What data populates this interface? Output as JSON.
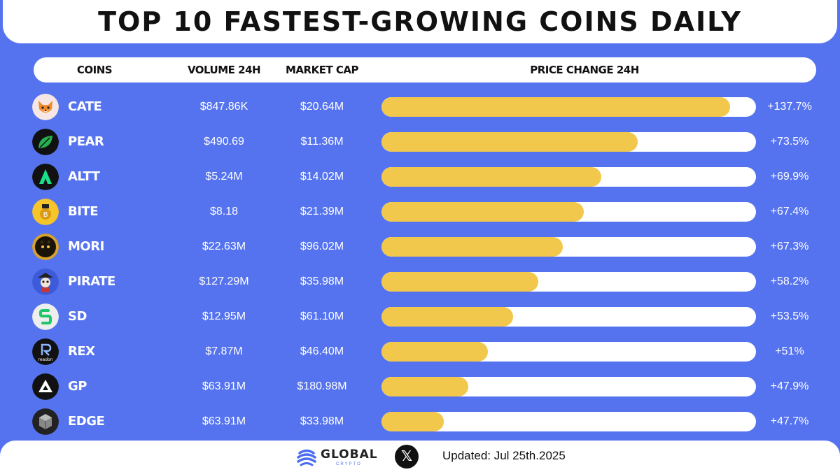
{
  "title": "TOP 10 FASTEST-GROWING COINS DAILY",
  "headers": {
    "coins": "COINS",
    "volume": "VOLUME 24H",
    "market_cap": "MARKET CAP",
    "price_change": "PRICE CHANGE 24H"
  },
  "colors": {
    "background": "#5573ef",
    "bar_fill": "#f1c84b",
    "bar_track": "#ffffff"
  },
  "chart_data": {
    "type": "bar",
    "orientation": "horizontal",
    "title": "TOP 10 FASTEST-GROWING COINS DAILY",
    "categories": [
      "CATE",
      "PEAR",
      "ALTT",
      "BITE",
      "MORI",
      "PIRATE",
      "SD",
      "REX",
      "GP",
      "EDGE"
    ],
    "values": [
      137.7,
      73.5,
      69.9,
      67.4,
      67.3,
      58.2,
      53.5,
      51,
      47.9,
      47.7
    ],
    "value_labels": [
      "+137.7%",
      "+73.5%",
      "+69.9%",
      "+67.4%",
      "+67.3%",
      "+58.2%",
      "+53.5%",
      "+51%",
      "+47.9%",
      "+47.7%"
    ],
    "bar_fill_fraction": [
      0.93,
      0.684,
      0.586,
      0.54,
      0.484,
      0.418,
      0.352,
      0.285,
      0.232,
      0.166
    ],
    "volume_24h": [
      "$847.86K",
      "$490.69",
      "$5.24M",
      "$8.18",
      "$22.63M",
      "$127.29M",
      "$12.95M",
      "$7.87M",
      "$63.91M",
      "$63.91M"
    ],
    "market_cap": [
      "$20.64M",
      "$11.36M",
      "$14.02M",
      "$21.39M",
      "$96.02M",
      "$35.98M",
      "$61.10M",
      "$46.40M",
      "$180.98M",
      "$33.98M"
    ]
  },
  "coins": [
    {
      "icon": "cate-fox-icon"
    },
    {
      "icon": "pear-leaf-icon"
    },
    {
      "icon": "altt-a-icon"
    },
    {
      "icon": "bite-coin-icon"
    },
    {
      "icon": "mori-cat-icon"
    },
    {
      "icon": "pirate-skull-icon"
    },
    {
      "icon": "sd-s-icon"
    },
    {
      "icon": "rex-readon-icon"
    },
    {
      "icon": "gp-triangle-icon"
    },
    {
      "icon": "edge-cube-icon"
    }
  ],
  "footer": {
    "brand_name": "GLOBAL",
    "brand_sub": "CRYPTO",
    "x_glyph": "𝕏",
    "updated": "Updated: Jul 25th.2025"
  }
}
